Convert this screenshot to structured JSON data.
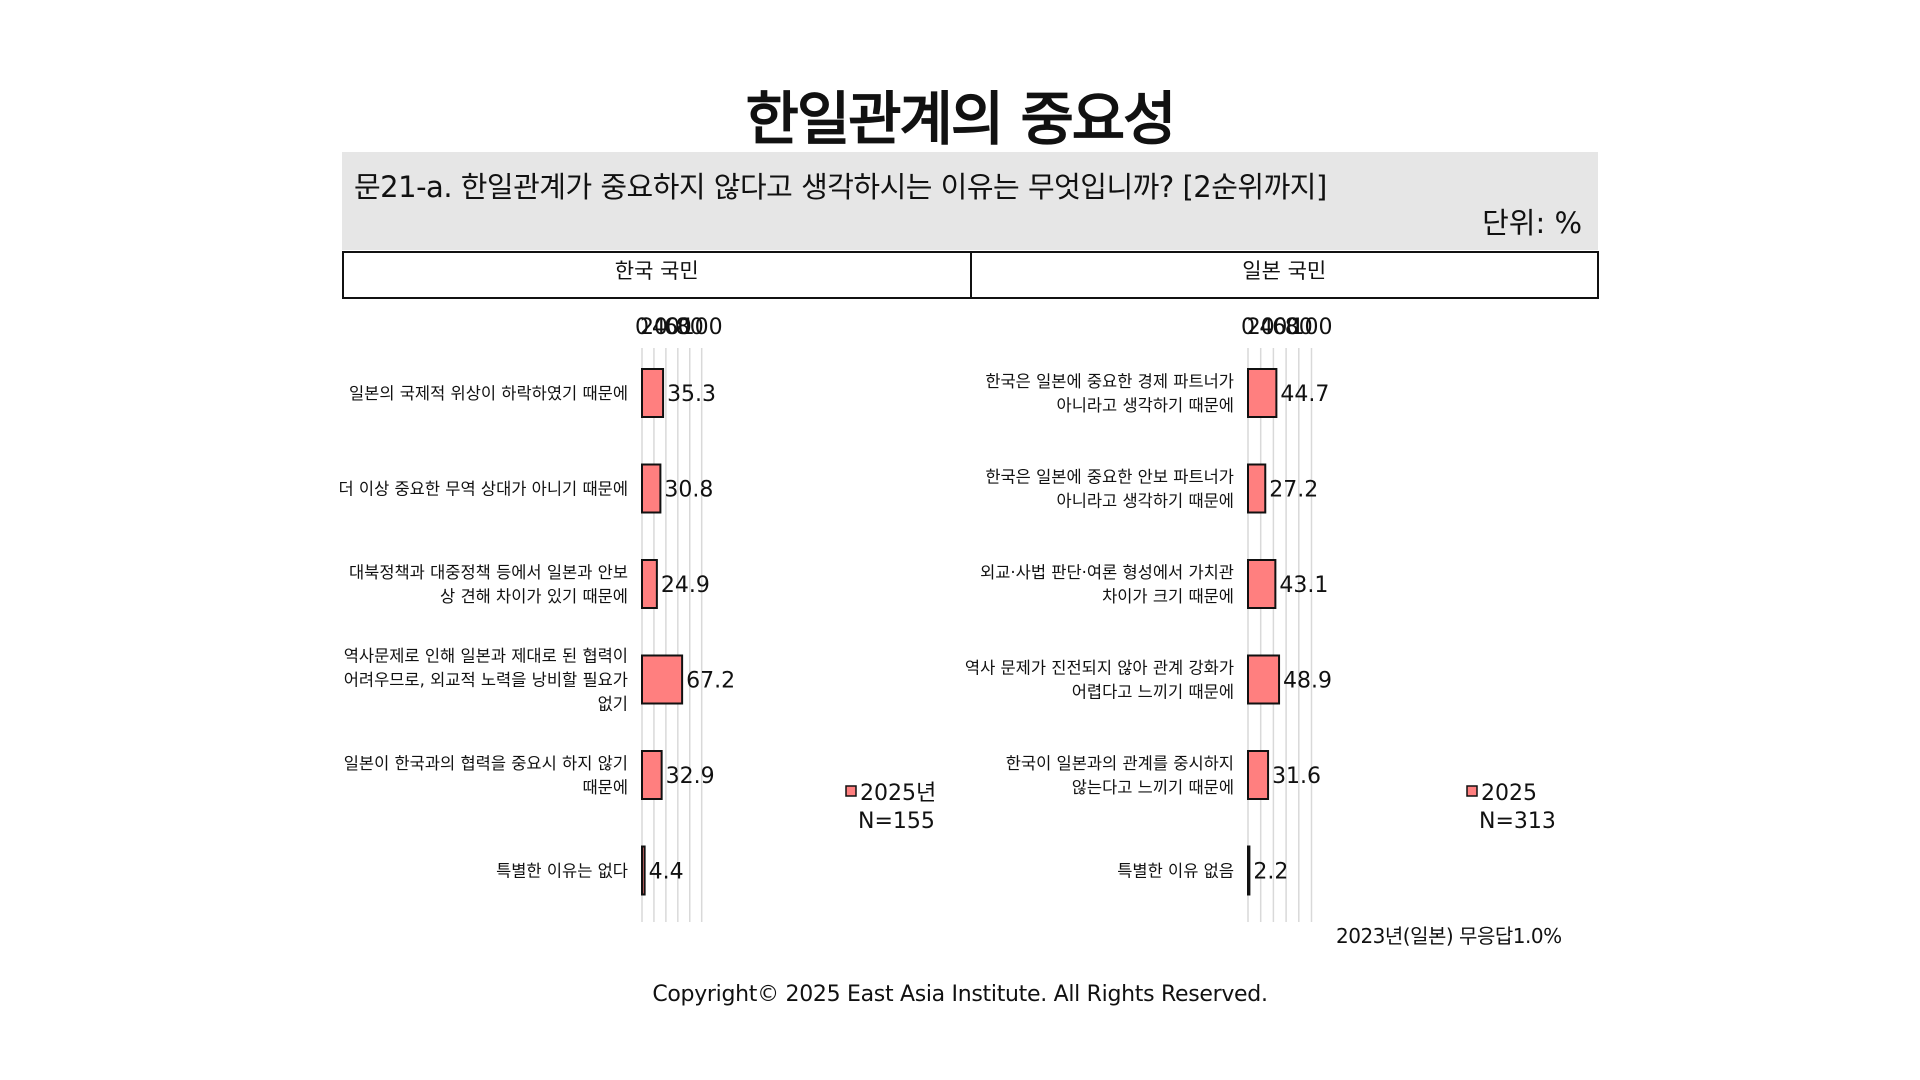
{
  "page": {
    "title": "한일관계의 중요성",
    "question": "문21-a. 한일관계가 중요하지 않다고 생각하시는 이유는 무엇입니까? [2순위까지]",
    "unit": "단위: %",
    "footnote": "2023년(일본) 무응답1.0%",
    "copyright": "Copyright© 2025 East Asia Institute. All Rights Reserved."
  },
  "colors": {
    "bar": "#ff7f7f",
    "bar_border": "#111111",
    "grid": "#d9d9d9"
  },
  "chart_data": [
    {
      "type": "bar",
      "orientation": "horizontal",
      "panel_title": "한국 국민",
      "xlim": [
        0,
        100
      ],
      "ticks": [
        0,
        20,
        40,
        60,
        80,
        100
      ],
      "grid": true,
      "legend_position": "right",
      "legend": {
        "label": "2025년",
        "n": "N=155"
      },
      "categories": [
        [
          "일본의 국제적 위상이 하락하였기 때문에"
        ],
        [
          "더 이상 중요한 무역 상대가 아니기 때문에"
        ],
        [
          "대북정책과 대중정책 등에서 일본과 안보",
          "상 견해 차이가 있기 때문에"
        ],
        [
          "역사문제로 인해 일본과 제대로 된 협력이",
          "어려우므로, 외교적 노력을 낭비할 필요가",
          "없기"
        ],
        [
          "일본이 한국과의 협력을 중요시 하지 않기",
          "때문에"
        ],
        [
          "특별한 이유는 없다"
        ]
      ],
      "values": [
        35.3,
        30.8,
        24.9,
        67.2,
        32.9,
        4.4
      ]
    },
    {
      "type": "bar",
      "orientation": "horizontal",
      "panel_title": "일본 국민",
      "xlim": [
        0,
        100
      ],
      "ticks": [
        0,
        20,
        40,
        60,
        80,
        100
      ],
      "grid": true,
      "legend_position": "right",
      "legend": {
        "label": "2025",
        "n": "N=313"
      },
      "categories": [
        [
          "한국은 일본에 중요한 경제 파트너가",
          "아니라고 생각하기 때문에"
        ],
        [
          "한국은 일본에 중요한 안보 파트너가",
          "아니라고 생각하기 때문에"
        ],
        [
          "외교·사법 판단·여론 형성에서 가치관",
          "차이가 크기 때문에"
        ],
        [
          "역사 문제가 진전되지 않아 관계 강화가",
          "어렵다고 느끼기 때문에"
        ],
        [
          "한국이 일본과의 관계를 중시하지",
          "않는다고 느끼기 때문에"
        ],
        [
          "특별한 이유 없음"
        ]
      ],
      "values": [
        44.7,
        27.2,
        43.1,
        48.9,
        31.6,
        2.2
      ]
    }
  ]
}
